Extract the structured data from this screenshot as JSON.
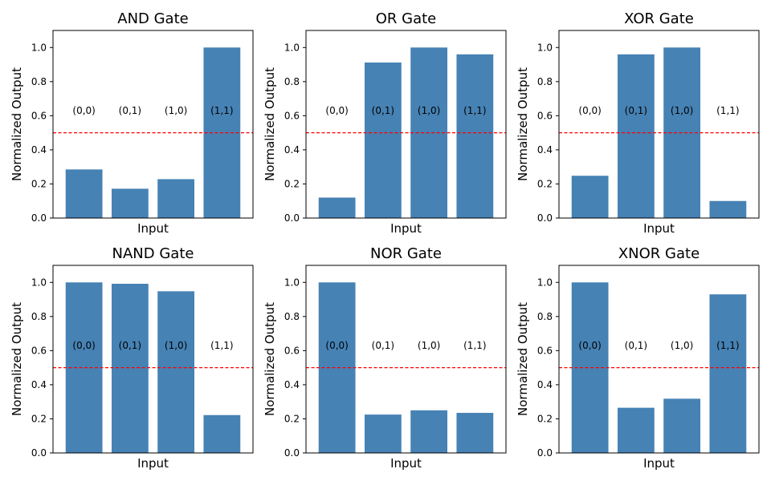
{
  "chart_data": [
    {
      "type": "bar",
      "title": "AND Gate",
      "xlabel": "Input",
      "ylabel": "Normalized Output",
      "categories": [
        "(0,0)",
        "(0,1)",
        "(1,0)",
        "(1,1)"
      ],
      "values": [
        0.285,
        0.172,
        0.228,
        1.0
      ],
      "ylim": [
        0,
        1.1
      ],
      "yticks": [
        "0.0",
        "0.2",
        "0.4",
        "0.6",
        "0.8",
        "1.0"
      ],
      "threshold": 0.5,
      "label_y": 0.63
    },
    {
      "type": "bar",
      "title": "OR Gate",
      "xlabel": "Input",
      "ylabel": "Normalized Output",
      "categories": [
        "(0,0)",
        "(0,1)",
        "(1,0)",
        "(1,1)"
      ],
      "values": [
        0.12,
        0.912,
        1.0,
        0.96
      ],
      "ylim": [
        0,
        1.1
      ],
      "yticks": [
        "0.0",
        "0.2",
        "0.4",
        "0.6",
        "0.8",
        "1.0"
      ],
      "threshold": 0.5,
      "label_y": 0.63
    },
    {
      "type": "bar",
      "title": "XOR Gate",
      "xlabel": "Input",
      "ylabel": "Normalized Output",
      "categories": [
        "(0,0)",
        "(0,1)",
        "(1,0)",
        "(1,1)"
      ],
      "values": [
        0.248,
        0.96,
        1.0,
        0.1
      ],
      "ylim": [
        0,
        1.1
      ],
      "yticks": [
        "0.0",
        "0.2",
        "0.4",
        "0.6",
        "0.8",
        "1.0"
      ],
      "threshold": 0.5,
      "label_y": 0.63
    },
    {
      "type": "bar",
      "title": "NAND Gate",
      "xlabel": "Input",
      "ylabel": "Normalized Output",
      "categories": [
        "(0,0)",
        "(0,1)",
        "(1,0)",
        "(1,1)"
      ],
      "values": [
        1.0,
        0.992,
        0.948,
        0.222
      ],
      "ylim": [
        0,
        1.1
      ],
      "yticks": [
        "0.0",
        "0.2",
        "0.4",
        "0.6",
        "0.8",
        "1.0"
      ],
      "threshold": 0.5,
      "label_y": 0.63
    },
    {
      "type": "bar",
      "title": "NOR Gate",
      "xlabel": "Input",
      "ylabel": "Normalized Output",
      "categories": [
        "(0,0)",
        "(0,1)",
        "(1,0)",
        "(1,1)"
      ],
      "values": [
        1.0,
        0.225,
        0.25,
        0.235
      ],
      "ylim": [
        0,
        1.1
      ],
      "yticks": [
        "0.0",
        "0.2",
        "0.4",
        "0.6",
        "0.8",
        "1.0"
      ],
      "threshold": 0.5,
      "label_y": 0.63
    },
    {
      "type": "bar",
      "title": "XNOR Gate",
      "xlabel": "Input",
      "ylabel": "Normalized Output",
      "categories": [
        "(0,0)",
        "(0,1)",
        "(1,0)",
        "(1,1)"
      ],
      "values": [
        1.0,
        0.265,
        0.318,
        0.93
      ],
      "ylim": [
        0,
        1.1
      ],
      "yticks": [
        "0.0",
        "0.2",
        "0.4",
        "0.6",
        "0.8",
        "1.0"
      ],
      "threshold": 0.5,
      "label_y": 0.63
    }
  ],
  "colors": {
    "bar": "#4682b4",
    "threshold": "#ff0000"
  }
}
